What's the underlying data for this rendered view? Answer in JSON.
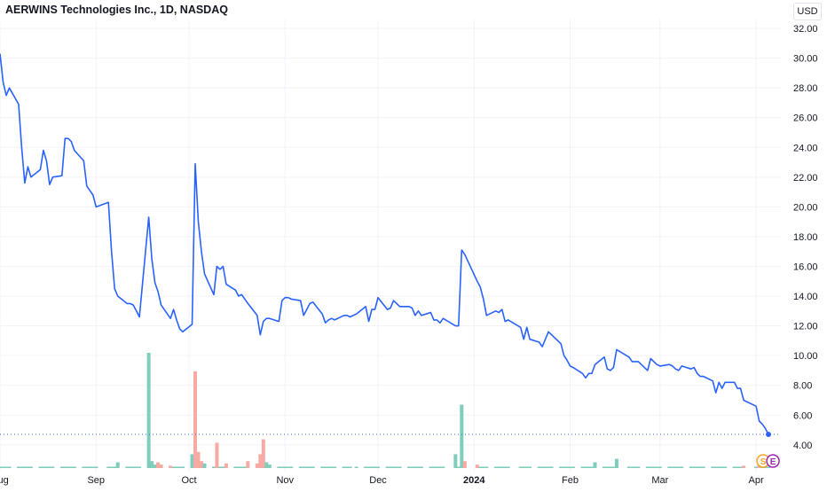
{
  "header": {
    "title": "AERWINS Technologies Inc., 1D, NASDAQ",
    "currency": "USD"
  },
  "colors": {
    "line": "#2962ff",
    "vol_up": "#7fcdbb",
    "vol_down": "#f7a9a3",
    "grid": "#f0f3fa",
    "axis_text": "#131722",
    "last_price_line": "#2962ff"
  },
  "markers": {
    "split": "S",
    "earnings": "E"
  },
  "chart_data": {
    "type": "line",
    "title": "AERWINS Technologies Inc., 1D, NASDAQ",
    "x_axis": {
      "start": "2023-08-01",
      "end": "2024-04-09",
      "tick_labels": [
        {
          "date": "2023-08-01",
          "label": "Aug"
        },
        {
          "date": "2023-09-01",
          "label": "Sep"
        },
        {
          "date": "2023-10-01",
          "label": "Oct"
        },
        {
          "date": "2023-11-01",
          "label": "Nov"
        },
        {
          "date": "2023-12-01",
          "label": "Dec"
        },
        {
          "date": "2024-01-01",
          "label": "2024"
        },
        {
          "date": "2024-02-01",
          "label": "Feb"
        },
        {
          "date": "2024-03-01",
          "label": "Mar"
        },
        {
          "date": "2024-04-01",
          "label": "Apr"
        }
      ]
    },
    "y_axis": {
      "side": "right",
      "ylim": [
        2.2,
        32.6
      ],
      "ticks": [
        "4.00",
        "6.00",
        "8.00",
        "10.00",
        "12.00",
        "14.00",
        "16.00",
        "18.00",
        "20.00",
        "22.00",
        "24.00",
        "26.00",
        "28.00",
        "30.00",
        "32.00"
      ]
    },
    "grid": true,
    "last_price": 4.7,
    "series": [
      {
        "values": [
          [
            "2023-08-01",
            30.3
          ],
          [
            "2023-08-02",
            28.4
          ],
          [
            "2023-08-03",
            27.5
          ],
          [
            "2023-08-04",
            28.0
          ],
          [
            "2023-08-07",
            26.9
          ],
          [
            "2023-08-08",
            24.0
          ],
          [
            "2023-08-09",
            21.6
          ],
          [
            "2023-08-10",
            22.7
          ],
          [
            "2023-08-11",
            22.0
          ],
          [
            "2023-08-14",
            22.5
          ],
          [
            "2023-08-15",
            23.8
          ],
          [
            "2023-08-16",
            23.1
          ],
          [
            "2023-08-17",
            21.5
          ],
          [
            "2023-08-18",
            22.0
          ],
          [
            "2023-08-21",
            22.1
          ],
          [
            "2023-08-22",
            24.6
          ],
          [
            "2023-08-23",
            24.6
          ],
          [
            "2023-08-24",
            24.4
          ],
          [
            "2023-08-25",
            23.8
          ],
          [
            "2023-08-28",
            23.1
          ],
          [
            "2023-08-29",
            21.4
          ],
          [
            "2023-08-30",
            21.1
          ],
          [
            "2023-08-31",
            20.8
          ],
          [
            "2023-09-01",
            20.0
          ],
          [
            "2023-09-05",
            20.3
          ],
          [
            "2023-09-06",
            17.0
          ],
          [
            "2023-09-07",
            14.5
          ],
          [
            "2023-09-08",
            14.0
          ],
          [
            "2023-09-11",
            13.5
          ],
          [
            "2023-09-12",
            13.5
          ],
          [
            "2023-09-13",
            13.4
          ],
          [
            "2023-09-14",
            13.0
          ],
          [
            "2023-09-15",
            12.6
          ],
          [
            "2023-09-18",
            19.3
          ],
          [
            "2023-09-19",
            16.5
          ],
          [
            "2023-09-20",
            14.9
          ],
          [
            "2023-09-21",
            14.3
          ],
          [
            "2023-09-22",
            13.4
          ],
          [
            "2023-09-25",
            12.5
          ],
          [
            "2023-09-26",
            13.1
          ],
          [
            "2023-09-27",
            12.4
          ],
          [
            "2023-09-28",
            11.8
          ],
          [
            "2023-09-29",
            11.6
          ],
          [
            "2023-10-02",
            12.1
          ],
          [
            "2023-10-03",
            22.9
          ],
          [
            "2023-10-04",
            19.0
          ],
          [
            "2023-10-05",
            17.0
          ],
          [
            "2023-10-06",
            15.5
          ],
          [
            "2023-10-09",
            14.1
          ],
          [
            "2023-10-10",
            16.0
          ],
          [
            "2023-10-11",
            15.8
          ],
          [
            "2023-10-12",
            16.0
          ],
          [
            "2023-10-13",
            14.8
          ],
          [
            "2023-10-16",
            14.4
          ],
          [
            "2023-10-17",
            14.0
          ],
          [
            "2023-10-18",
            14.1
          ],
          [
            "2023-10-19",
            13.8
          ],
          [
            "2023-10-20",
            13.5
          ],
          [
            "2023-10-23",
            12.7
          ],
          [
            "2023-10-24",
            11.4
          ],
          [
            "2023-10-25",
            12.3
          ],
          [
            "2023-10-26",
            12.5
          ],
          [
            "2023-10-27",
            12.5
          ],
          [
            "2023-10-30",
            12.3
          ],
          [
            "2023-10-31",
            13.7
          ],
          [
            "2023-11-01",
            13.9
          ],
          [
            "2023-11-02",
            13.9
          ],
          [
            "2023-11-03",
            13.8
          ],
          [
            "2023-11-06",
            13.7
          ],
          [
            "2023-11-07",
            12.7
          ],
          [
            "2023-11-08",
            13.1
          ],
          [
            "2023-11-09",
            13.5
          ],
          [
            "2023-11-10",
            13.6
          ],
          [
            "2023-11-13",
            12.8
          ],
          [
            "2023-11-14",
            12.2
          ],
          [
            "2023-11-15",
            12.4
          ],
          [
            "2023-11-16",
            12.5
          ],
          [
            "2023-11-17",
            12.4
          ],
          [
            "2023-11-20",
            12.7
          ],
          [
            "2023-11-21",
            12.7
          ],
          [
            "2023-11-22",
            12.6
          ],
          [
            "2023-11-24",
            12.8
          ],
          [
            "2023-11-27",
            13.3
          ],
          [
            "2023-11-28",
            12.3
          ],
          [
            "2023-11-29",
            13.1
          ],
          [
            "2023-11-30",
            13.1
          ],
          [
            "2023-12-01",
            13.9
          ],
          [
            "2023-12-04",
            13.1
          ],
          [
            "2023-12-05",
            13.2
          ],
          [
            "2023-12-06",
            13.7
          ],
          [
            "2023-12-07",
            13.5
          ],
          [
            "2023-12-08",
            13.3
          ],
          [
            "2023-12-11",
            13.3
          ],
          [
            "2023-12-12",
            13.2
          ],
          [
            "2023-12-13",
            12.7
          ],
          [
            "2023-12-14",
            13.0
          ],
          [
            "2023-12-15",
            12.7
          ],
          [
            "2023-12-18",
            12.9
          ],
          [
            "2023-12-19",
            12.4
          ],
          [
            "2023-12-20",
            12.4
          ],
          [
            "2023-12-21",
            12.2
          ],
          [
            "2023-12-22",
            12.5
          ],
          [
            "2023-12-26",
            12.0
          ],
          [
            "2023-12-27",
            12.0
          ],
          [
            "2023-12-28",
            17.1
          ],
          [
            "2023-12-29",
            16.8
          ],
          [
            "2024-01-02",
            15.0
          ],
          [
            "2024-01-03",
            14.6
          ],
          [
            "2024-01-04",
            13.8
          ],
          [
            "2024-01-05",
            12.7
          ],
          [
            "2024-01-08",
            13.0
          ],
          [
            "2024-01-09",
            12.9
          ],
          [
            "2024-01-10",
            13.1
          ],
          [
            "2024-01-11",
            12.3
          ],
          [
            "2024-01-12",
            12.4
          ],
          [
            "2024-01-16",
            11.9
          ],
          [
            "2024-01-17",
            11.1
          ],
          [
            "2024-01-18",
            11.9
          ],
          [
            "2024-01-19",
            11.1
          ],
          [
            "2024-01-22",
            10.9
          ],
          [
            "2024-01-23",
            10.6
          ],
          [
            "2024-01-24",
            11.1
          ],
          [
            "2024-01-25",
            11.6
          ],
          [
            "2024-01-26",
            11.4
          ],
          [
            "2024-01-29",
            10.8
          ],
          [
            "2024-01-30",
            10.0
          ],
          [
            "2024-01-31",
            9.7
          ],
          [
            "2024-02-01",
            9.3
          ],
          [
            "2024-02-02",
            9.2
          ],
          [
            "2024-02-05",
            8.8
          ],
          [
            "2024-02-06",
            8.5
          ],
          [
            "2024-02-07",
            8.8
          ],
          [
            "2024-02-08",
            8.8
          ],
          [
            "2024-02-09",
            9.4
          ],
          [
            "2024-02-12",
            9.9
          ],
          [
            "2024-02-13",
            9.1
          ],
          [
            "2024-02-14",
            9.0
          ],
          [
            "2024-02-15",
            9.2
          ],
          [
            "2024-02-16",
            10.4
          ],
          [
            "2024-02-20",
            9.9
          ],
          [
            "2024-02-21",
            9.6
          ],
          [
            "2024-02-22",
            9.6
          ],
          [
            "2024-02-23",
            9.6
          ],
          [
            "2024-02-26",
            9.0
          ],
          [
            "2024-02-27",
            9.8
          ],
          [
            "2024-02-28",
            9.6
          ],
          [
            "2024-02-29",
            9.4
          ],
          [
            "2024-03-01",
            9.3
          ],
          [
            "2024-03-04",
            9.4
          ],
          [
            "2024-03-05",
            9.3
          ],
          [
            "2024-03-06",
            9.1
          ],
          [
            "2024-03-07",
            9.0
          ],
          [
            "2024-03-08",
            9.3
          ],
          [
            "2024-03-11",
            9.1
          ],
          [
            "2024-03-12",
            9.2
          ],
          [
            "2024-03-13",
            8.8
          ],
          [
            "2024-03-14",
            8.6
          ],
          [
            "2024-03-15",
            8.6
          ],
          [
            "2024-03-18",
            8.3
          ],
          [
            "2024-03-19",
            7.5
          ],
          [
            "2024-03-20",
            8.2
          ],
          [
            "2024-03-21",
            7.8
          ],
          [
            "2024-03-22",
            8.2
          ],
          [
            "2024-03-25",
            8.2
          ],
          [
            "2024-03-26",
            7.8
          ],
          [
            "2024-03-27",
            7.8
          ],
          [
            "2024-03-28",
            7.0
          ],
          [
            "2024-04-01",
            6.6
          ],
          [
            "2024-04-02",
            5.6
          ],
          [
            "2024-04-03",
            5.4
          ],
          [
            "2024-04-04",
            5.1
          ],
          [
            "2024-04-05",
            4.7
          ]
        ]
      }
    ],
    "volume": {
      "max": 1.0,
      "bars": [
        {
          "date": "2023-09-08",
          "value": 0.05,
          "dir": "up"
        },
        {
          "date": "2023-09-18",
          "value": 1.0,
          "dir": "up"
        },
        {
          "date": "2023-09-19",
          "value": 0.06,
          "dir": "up"
        },
        {
          "date": "2023-09-20",
          "value": 0.03,
          "dir": "up"
        },
        {
          "date": "2023-09-21",
          "value": 0.05,
          "dir": "down"
        },
        {
          "date": "2023-09-22",
          "value": 0.03,
          "dir": "down"
        },
        {
          "date": "2023-09-25",
          "value": 0.02,
          "dir": "down"
        },
        {
          "date": "2023-10-02",
          "value": 0.12,
          "dir": "up"
        },
        {
          "date": "2023-10-03",
          "value": 0.84,
          "dir": "down"
        },
        {
          "date": "2023-10-04",
          "value": 0.14,
          "dir": "down"
        },
        {
          "date": "2023-10-05",
          "value": 0.06,
          "dir": "down"
        },
        {
          "date": "2023-10-06",
          "value": 0.04,
          "dir": "up"
        },
        {
          "date": "2023-10-10",
          "value": 0.22,
          "dir": "down"
        },
        {
          "date": "2023-10-13",
          "value": 0.04,
          "dir": "down"
        },
        {
          "date": "2023-10-20",
          "value": 0.06,
          "dir": "down"
        },
        {
          "date": "2023-10-23",
          "value": 0.04,
          "dir": "down"
        },
        {
          "date": "2023-10-24",
          "value": 0.12,
          "dir": "down"
        },
        {
          "date": "2023-10-25",
          "value": 0.25,
          "dir": "down"
        },
        {
          "date": "2023-10-26",
          "value": 0.05,
          "dir": "up"
        },
        {
          "date": "2023-10-27",
          "value": 0.03,
          "dir": "up"
        },
        {
          "date": "2023-12-26",
          "value": 0.12,
          "dir": "up"
        },
        {
          "date": "2023-12-28",
          "value": 0.55,
          "dir": "up"
        },
        {
          "date": "2023-12-29",
          "value": 0.06,
          "dir": "down"
        },
        {
          "date": "2024-01-02",
          "value": 0.03,
          "dir": "down"
        },
        {
          "date": "2024-02-09",
          "value": 0.05,
          "dir": "up"
        },
        {
          "date": "2024-02-16",
          "value": 0.08,
          "dir": "up"
        },
        {
          "date": "2024-03-28",
          "value": 0.02,
          "dir": "down"
        },
        {
          "date": "2024-04-02",
          "value": 0.03,
          "dir": "down"
        }
      ]
    }
  }
}
